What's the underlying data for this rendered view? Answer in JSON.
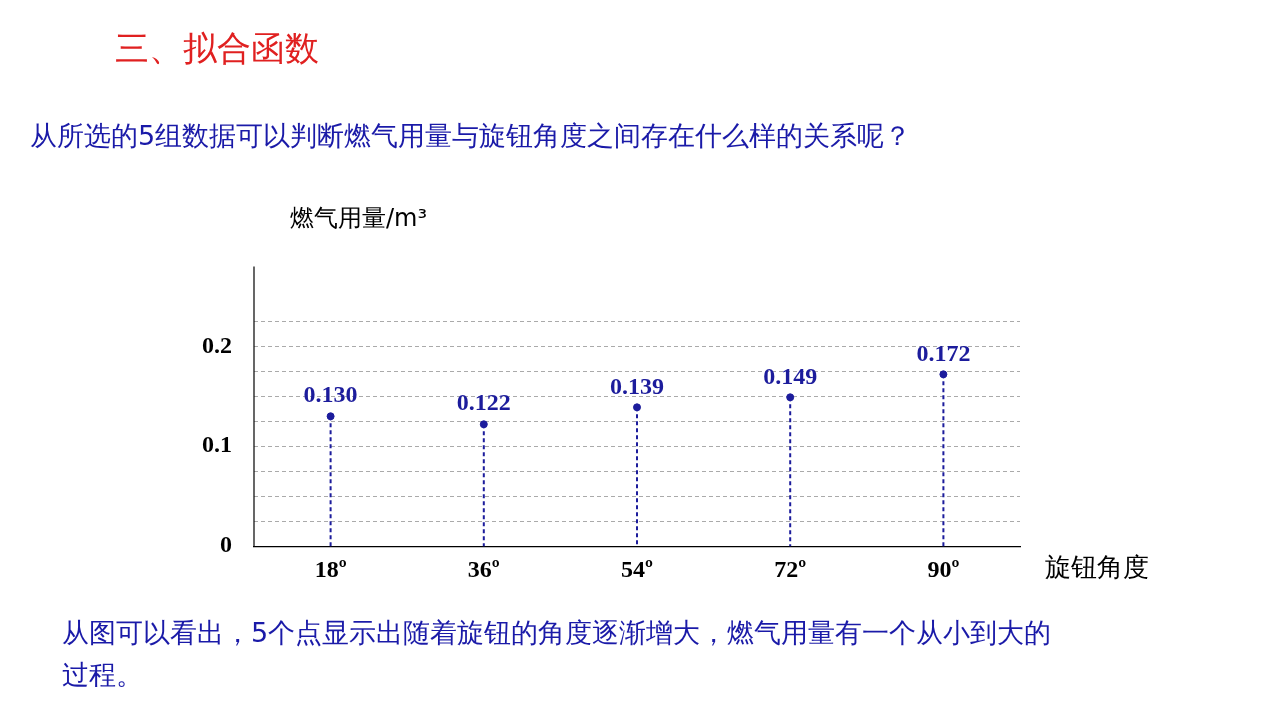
{
  "chart_data": {
    "type": "lollipop",
    "title": "三、拟合函数",
    "subtitle": "从所选的5组数据可以判断燃气用量与旋钮角度之间存在什么样的关系呢？",
    "xlabel": "旋钮角度",
    "ylabel": "燃气用量/m³",
    "categories": [
      "18º",
      "36º",
      "54º",
      "72º",
      "90º"
    ],
    "series": [
      {
        "color": "#1c1c9c",
        "values": [
          0.13,
          0.122,
          0.139,
          0.149,
          0.172
        ],
        "value_labels": [
          "0.130",
          "0.122",
          "0.139",
          "0.149",
          "0.172"
        ]
      }
    ],
    "ylim": [
      0,
      0.28
    ],
    "yticks": [
      0,
      {
        "value": 0.025,
        "label": null
      },
      {
        "value": 0.05,
        "label": null
      },
      {
        "value": 0.075,
        "label": null
      },
      0.1,
      {
        "value": 0.125,
        "label": null
      },
      {
        "value": 0.15,
        "label": null
      },
      {
        "value": 0.175,
        "label": null
      },
      0.2,
      {
        "value": 0.225,
        "label": null
      }
    ],
    "grid": "y",
    "marker": "circle",
    "line_style": "dashed",
    "legend": false,
    "annotations": [
      "从图可以看出，5个点显示出随着旋钮的角度逐渐增大，燃气用量有一个从小到大的过程。"
    ]
  }
}
